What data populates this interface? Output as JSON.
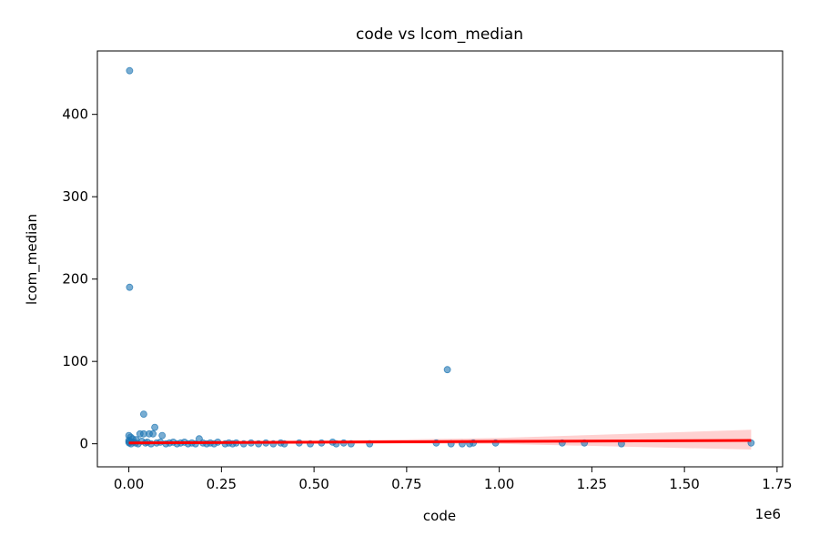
{
  "chart_data": {
    "type": "scatter",
    "title": "code vs lcom_median",
    "xlabel": "code",
    "ylabel": "lcom_median",
    "x_offset_label": "1e6",
    "xlim": [
      -0.085,
      1.765
    ],
    "ylim": [
      -28,
      477
    ],
    "xticks": [
      0.0,
      0.25,
      0.5,
      0.75,
      1.0,
      1.25,
      1.5,
      1.75
    ],
    "xtick_labels": [
      "0.00",
      "0.25",
      "0.50",
      "0.75",
      "1.00",
      "1.25",
      "1.50",
      "1.75"
    ],
    "yticks": [
      0,
      100,
      200,
      300,
      400
    ],
    "ytick_labels": [
      "0",
      "100",
      "200",
      "300",
      "400"
    ],
    "grid": false,
    "colors": {
      "points": "#1f77b4",
      "regression": "#ff0000",
      "band": "#ffb3b3"
    },
    "regression": {
      "x": [
        0.0,
        1.68
      ],
      "y": [
        1.0,
        4.0
      ]
    },
    "confidence_band": {
      "x": [
        0.0,
        0.5,
        1.0,
        1.68
      ],
      "lower": [
        0.0,
        0.5,
        0.0,
        -7.0
      ],
      "upper": [
        2.0,
        3.5,
        7.0,
        17.0
      ]
    },
    "points": [
      [
        0.002,
        453
      ],
      [
        0.002,
        190
      ],
      [
        0.86,
        90
      ],
      [
        0.04,
        36
      ],
      [
        0.07,
        20
      ],
      [
        0.04,
        12
      ],
      [
        0.055,
        12
      ],
      [
        0.065,
        12
      ],
      [
        0.09,
        10
      ],
      [
        0.03,
        12
      ],
      [
        0.19,
        6
      ],
      [
        0.0,
        10
      ],
      [
        0.005,
        8
      ],
      [
        0.01,
        6
      ],
      [
        0.02,
        5
      ],
      [
        0.0,
        4
      ],
      [
        0.003,
        3
      ],
      [
        0.0,
        2
      ],
      [
        0.001,
        1
      ],
      [
        0.006,
        0
      ],
      [
        0.012,
        2
      ],
      [
        0.018,
        1
      ],
      [
        0.025,
        0
      ],
      [
        0.035,
        3
      ],
      [
        0.045,
        1
      ],
      [
        0.05,
        2
      ],
      [
        0.06,
        0
      ],
      [
        0.075,
        1
      ],
      [
        0.085,
        2
      ],
      [
        0.1,
        0
      ],
      [
        0.11,
        1
      ],
      [
        0.12,
        2
      ],
      [
        0.13,
        0
      ],
      [
        0.14,
        1
      ],
      [
        0.15,
        2
      ],
      [
        0.16,
        0
      ],
      [
        0.17,
        1
      ],
      [
        0.18,
        0
      ],
      [
        0.2,
        1
      ],
      [
        0.21,
        0
      ],
      [
        0.22,
        1
      ],
      [
        0.23,
        0
      ],
      [
        0.24,
        2
      ],
      [
        0.26,
        0
      ],
      [
        0.27,
        1
      ],
      [
        0.28,
        0
      ],
      [
        0.29,
        1
      ],
      [
        0.31,
        0
      ],
      [
        0.33,
        1
      ],
      [
        0.35,
        0
      ],
      [
        0.37,
        1
      ],
      [
        0.39,
        0
      ],
      [
        0.41,
        1
      ],
      [
        0.42,
        0
      ],
      [
        0.46,
        1
      ],
      [
        0.49,
        0
      ],
      [
        0.52,
        1
      ],
      [
        0.55,
        2
      ],
      [
        0.56,
        0
      ],
      [
        0.58,
        1
      ],
      [
        0.6,
        0
      ],
      [
        0.65,
        0
      ],
      [
        0.83,
        1
      ],
      [
        0.87,
        0
      ],
      [
        0.9,
        0
      ],
      [
        0.92,
        0
      ],
      [
        0.93,
        1
      ],
      [
        0.99,
        1
      ],
      [
        1.17,
        1
      ],
      [
        1.23,
        1
      ],
      [
        1.33,
        0
      ],
      [
        1.68,
        1
      ]
    ]
  }
}
